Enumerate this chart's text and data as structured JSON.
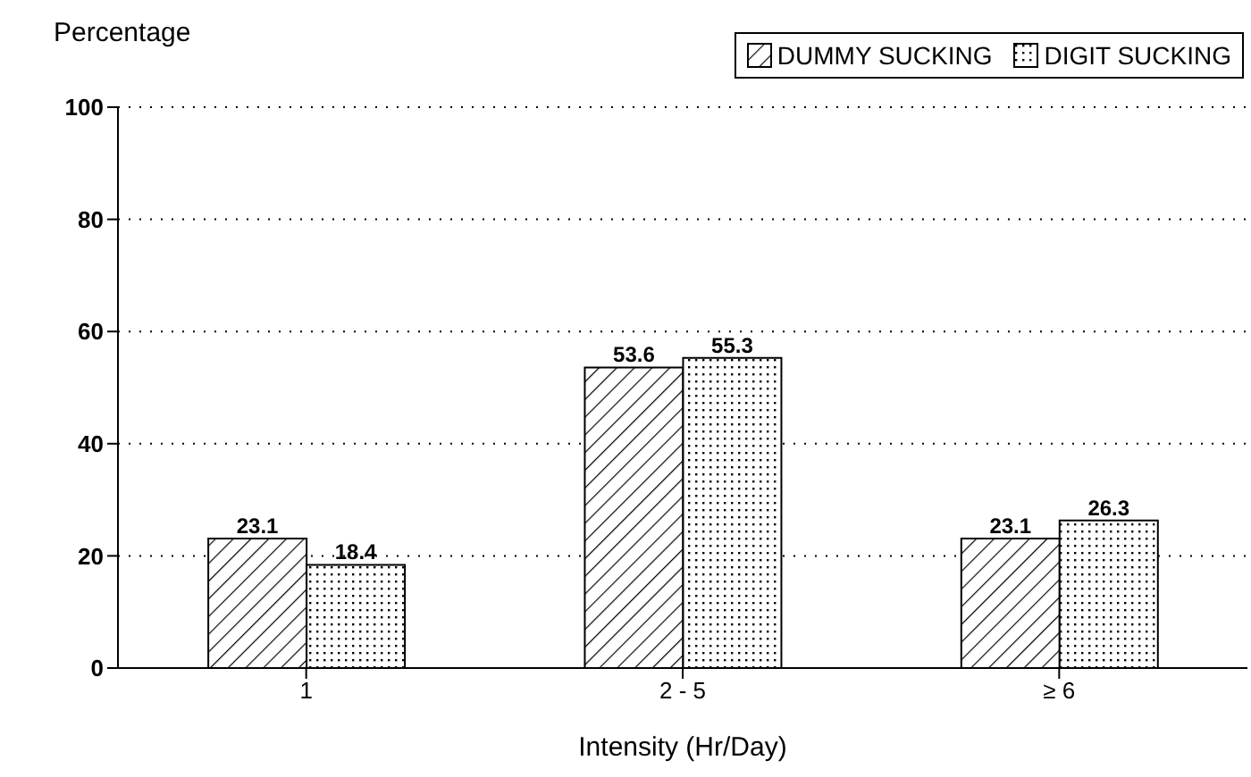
{
  "chart_data": {
    "type": "bar",
    "xlabel": "Intensity (Hr/Day)",
    "ylabel": "Percentage",
    "categories": [
      "1",
      "2 - 5",
      "≥ 6"
    ],
    "series": [
      {
        "name": "DUMMY SUCKING",
        "color": "#000000",
        "values": [
          23.1,
          53.6,
          23.1
        ]
      },
      {
        "name": "DIGIT SUCKING",
        "color": "#000000",
        "values": [
          18.4,
          55.3,
          26.3
        ]
      }
    ],
    "ylim": [
      0,
      100
    ],
    "yticks": [
      0,
      20,
      40,
      60,
      80,
      100
    ],
    "grid": "y",
    "legend": "top right",
    "data_labels": true
  }
}
